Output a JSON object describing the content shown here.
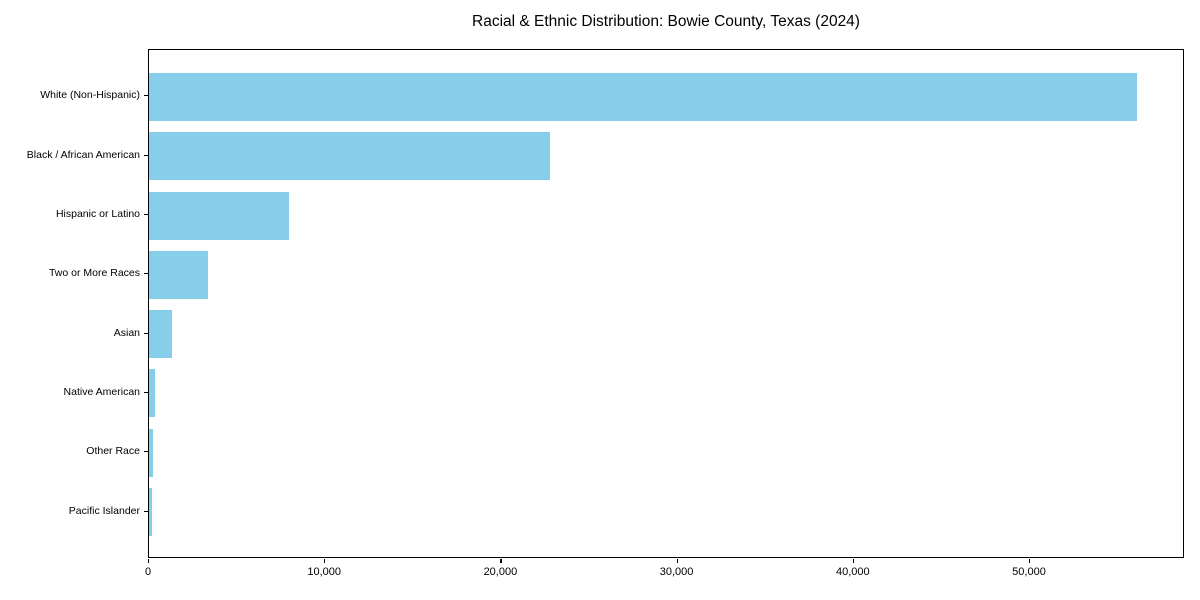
{
  "title": "Racial & Ethnic Distribution: Bowie County, Texas (2024)",
  "colors": {
    "bar": "#87CEEB",
    "axis": "#000000",
    "text": "#000000",
    "background": "#ffffff"
  },
  "chart_data": {
    "type": "bar",
    "orientation": "horizontal",
    "title": "Racial & Ethnic Distribution: Bowie County, Texas (2024)",
    "xlabel": "",
    "ylabel": "",
    "grid": false,
    "legend": null,
    "categories": [
      "White (Non-Hispanic)",
      "Black / African American",
      "Hispanic or Latino",
      "Two or More Races",
      "Asian",
      "Native American",
      "Other Race",
      "Pacific Islander"
    ],
    "values": [
      56100,
      22750,
      7950,
      3370,
      1330,
      340,
      250,
      150
    ],
    "xlim": [
      0,
      58800
    ],
    "x_ticks": [
      {
        "value": 0,
        "label": "0"
      },
      {
        "value": 10000,
        "label": "10,000"
      },
      {
        "value": 20000,
        "label": "20,000"
      },
      {
        "value": 30000,
        "label": "30,000"
      },
      {
        "value": 40000,
        "label": "40,000"
      },
      {
        "value": 50000,
        "label": "50,000"
      }
    ]
  }
}
